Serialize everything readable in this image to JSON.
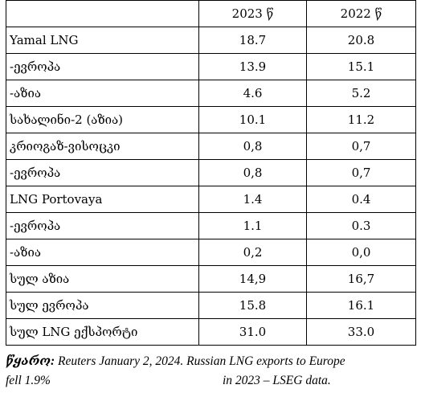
{
  "table": {
    "header": [
      "",
      "2023 წ",
      "2022 წ"
    ],
    "rows": [
      {
        "label": "Yamal LNG",
        "v2023": "18.7",
        "v2022": "20.8"
      },
      {
        "label": "-ევროპა",
        "v2023": "13.9",
        "v2022": "15.1"
      },
      {
        "label": "-აზია",
        "v2023": "4.6",
        "v2022": "5.2"
      },
      {
        "label": "სახალინი-2 (აზია)",
        "v2023": "10.1",
        "v2022": "11.2"
      },
      {
        "label": "კრიოგაზ-ვისოცკი",
        "v2023": "0,8",
        "v2022": "0,7"
      },
      {
        "label": "-ევროპა",
        "v2023": "0,8",
        "v2022": "0,7"
      },
      {
        "label": "LNG Portovaya",
        "v2023": "1.4",
        "v2022": "0.4"
      },
      {
        "label": "-ევროპა",
        "v2023": "1.1",
        "v2022": "0.3"
      },
      {
        "label": "-აზია",
        "v2023": "0,2",
        "v2022": "0,0"
      },
      {
        "label": "სულ აზია",
        "v2023": "14,9",
        "v2022": "16,7"
      },
      {
        "label": "სულ ევროპა",
        "v2023": "15.8",
        "v2022": "16.1"
      },
      {
        "label": "სულ LNG ექსპორტი",
        "v2023": "31.0",
        "v2022": "33.0"
      }
    ]
  },
  "source": {
    "label": "წყარო:",
    "line1": " Reuters January  2, 2024. Russian  LNG exports to Europe",
    "line2a": "fell 1.9%",
    "line2b": "in 2023 – LSEG data."
  }
}
